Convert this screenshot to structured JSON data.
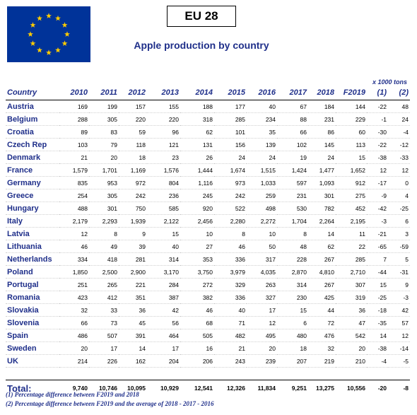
{
  "title": "EU 28",
  "subtitle": "Apple production by country",
  "units": "x 1000 tons",
  "table": {
    "headers": [
      "Country",
      "2010",
      "2011",
      "2012",
      "2013",
      "2014",
      "2015",
      "2016",
      "2017",
      "2018",
      "F2019",
      "(1)",
      "(2)"
    ],
    "rows": [
      [
        "Austria",
        "169",
        "199",
        "157",
        "155",
        "188",
        "177",
        "40",
        "67",
        "184",
        "144",
        "-22",
        "48"
      ],
      [
        "Belgium",
        "288",
        "305",
        "220",
        "220",
        "318",
        "285",
        "234",
        "88",
        "231",
        "229",
        "-1",
        "24"
      ],
      [
        "Croatia",
        "89",
        "83",
        "59",
        "96",
        "62",
        "101",
        "35",
        "66",
        "86",
        "60",
        "-30",
        "-4"
      ],
      [
        "Czech Rep",
        "103",
        "79",
        "118",
        "121",
        "131",
        "156",
        "139",
        "102",
        "145",
        "113",
        "-22",
        "-12"
      ],
      [
        "Denmark",
        "21",
        "20",
        "18",
        "23",
        "26",
        "24",
        "24",
        "19",
        "24",
        "15",
        "-38",
        "-33"
      ],
      [
        "France",
        "1,579",
        "1,701",
        "1,169",
        "1,576",
        "1,444",
        "1,674",
        "1,515",
        "1,424",
        "1,477",
        "1,652",
        "12",
        "12"
      ],
      [
        "Germany",
        "835",
        "953",
        "972",
        "804",
        "1,116",
        "973",
        "1,033",
        "597",
        "1,093",
        "912",
        "-17",
        "0"
      ],
      [
        "Greece",
        "254",
        "305",
        "242",
        "236",
        "245",
        "242",
        "259",
        "231",
        "301",
        "275",
        "-9",
        "4"
      ],
      [
        "Hungary",
        "488",
        "301",
        "750",
        "585",
        "920",
        "522",
        "498",
        "530",
        "782",
        "452",
        "-42",
        "-25"
      ],
      [
        "Italy",
        "2,179",
        "2,293",
        "1,939",
        "2,122",
        "2,456",
        "2,280",
        "2,272",
        "1,704",
        "2,264",
        "2,195",
        "-3",
        "6"
      ],
      [
        "Latvia",
        "12",
        "8",
        "9",
        "15",
        "10",
        "8",
        "10",
        "8",
        "14",
        "11",
        "-21",
        "3"
      ],
      [
        "Lithuania",
        "46",
        "49",
        "39",
        "40",
        "27",
        "46",
        "50",
        "48",
        "62",
        "22",
        "-65",
        "-59"
      ],
      [
        "Netherlands",
        "334",
        "418",
        "281",
        "314",
        "353",
        "336",
        "317",
        "228",
        "267",
        "285",
        "7",
        "5"
      ],
      [
        "Poland",
        "1,850",
        "2,500",
        "2,900",
        "3,170",
        "3,750",
        "3,979",
        "4,035",
        "2,870",
        "4,810",
        "2,710",
        "-44",
        "-31"
      ],
      [
        "Portugal",
        "251",
        "265",
        "221",
        "284",
        "272",
        "329",
        "263",
        "314",
        "267",
        "307",
        "15",
        "9"
      ],
      [
        "Romania",
        "423",
        "412",
        "351",
        "387",
        "382",
        "336",
        "327",
        "230",
        "425",
        "319",
        "-25",
        "-3"
      ],
      [
        "Slovakia",
        "32",
        "33",
        "36",
        "42",
        "46",
        "40",
        "17",
        "15",
        "44",
        "36",
        "-18",
        "42"
      ],
      [
        "Slovenia",
        "66",
        "73",
        "45",
        "56",
        "68",
        "71",
        "12",
        "6",
        "72",
        "47",
        "-35",
        "57"
      ],
      [
        "Spain",
        "486",
        "507",
        "391",
        "464",
        "505",
        "482",
        "495",
        "480",
        "476",
        "542",
        "14",
        "12"
      ],
      [
        "Sweden",
        "20",
        "17",
        "14",
        "17",
        "16",
        "21",
        "20",
        "18",
        "32",
        "20",
        "-38",
        "-14"
      ],
      [
        "UK",
        "214",
        "226",
        "162",
        "204",
        "206",
        "243",
        "239",
        "207",
        "219",
        "210",
        "-4",
        "-5"
      ]
    ],
    "total": [
      "Total:",
      "9,740",
      "10,746",
      "10,095",
      "10,929",
      "12,541",
      "12,326",
      "11,834",
      "9,251",
      "13,275",
      "10,556",
      "-20",
      "-8"
    ]
  },
  "footnotes": [
    "(1) Percentage difference between F2019 and 2018",
    "(2) Percentage difference between F2019 and the average of 2018 - 2017 - 2016"
  ],
  "colors": {
    "flag_blue": "#003399",
    "flag_star": "#ffcc00",
    "heading_blue": "#1f2f8a"
  },
  "icons": {
    "flag": "eu-flag-icon"
  }
}
